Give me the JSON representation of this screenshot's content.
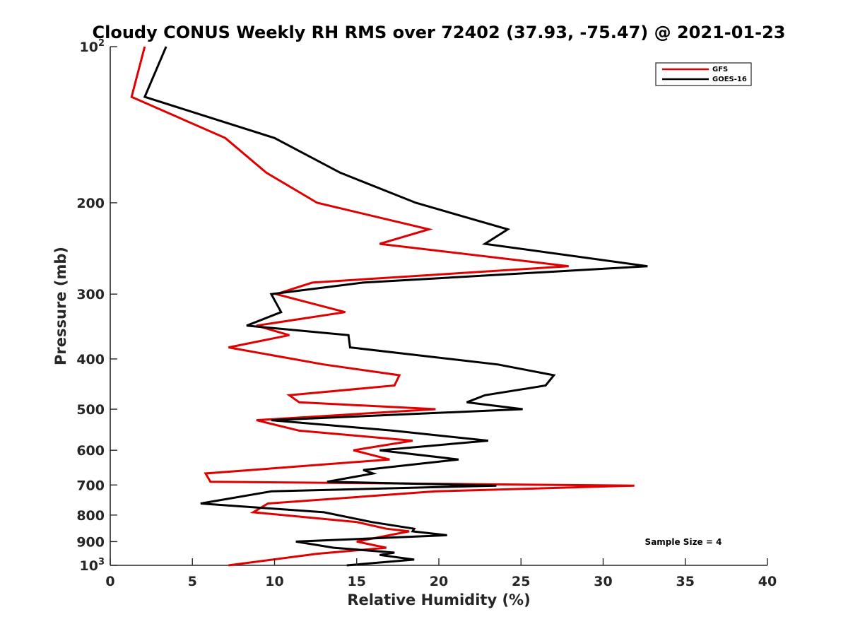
{
  "chart_data": {
    "type": "line",
    "title": "Cloudy CONUS Weekly RH RMS over 72402 (37.93, -75.47) @ 2021-01-23",
    "xlabel": "Relative Humidity (%)",
    "ylabel": "Pressure (mb)",
    "xlim": [
      0,
      40
    ],
    "ylim": [
      100,
      1000
    ],
    "y_scale": "log",
    "y_reversed": true,
    "x_ticks": [
      0,
      5,
      10,
      15,
      20,
      25,
      30,
      35,
      40
    ],
    "x_tick_labels": [
      "0",
      "5",
      "10",
      "15",
      "20",
      "25",
      "30",
      "35",
      "40"
    ],
    "y_ticks": [
      100,
      200,
      300,
      400,
      500,
      600,
      700,
      800,
      900,
      1000
    ],
    "y_tick_labels": [
      "10^2",
      "200",
      "300",
      "400",
      "500",
      "600",
      "700",
      "800",
      "900",
      "10^3"
    ],
    "grid": false,
    "legend_position": "top-right",
    "annotation": "Sample Size = 4",
    "series": [
      {
        "name": "GFS",
        "color": "#e00000",
        "points": [
          [
            2.1,
            100
          ],
          [
            1.3,
            125
          ],
          [
            7.0,
            150
          ],
          [
            9.5,
            175
          ],
          [
            12.6,
            200
          ],
          [
            19.4,
            225
          ],
          [
            16.4,
            240
          ],
          [
            27.9,
            265
          ],
          [
            12.3,
            285
          ],
          [
            10.1,
            300
          ],
          [
            14.3,
            325
          ],
          [
            8.9,
            345
          ],
          [
            10.9,
            360
          ],
          [
            7.2,
            380
          ],
          [
            13.0,
            410
          ],
          [
            17.6,
            430
          ],
          [
            17.3,
            450
          ],
          [
            10.9,
            470
          ],
          [
            11.5,
            485
          ],
          [
            19.8,
            500
          ],
          [
            8.9,
            525
          ],
          [
            11.5,
            550
          ],
          [
            18.4,
            575
          ],
          [
            14.8,
            600
          ],
          [
            17.0,
            625
          ],
          [
            5.8,
            665
          ],
          [
            6.1,
            690
          ],
          [
            31.9,
            702
          ],
          [
            19.8,
            720
          ],
          [
            9.6,
            760
          ],
          [
            8.7,
            790
          ],
          [
            15.0,
            825
          ],
          [
            16.8,
            850
          ],
          [
            18.2,
            860
          ],
          [
            15.0,
            900
          ],
          [
            16.8,
            925
          ],
          [
            12.6,
            950
          ],
          [
            7.2,
            1000
          ]
        ]
      },
      {
        "name": "GOES-16",
        "color": "#000000",
        "points": [
          [
            3.4,
            100
          ],
          [
            2.1,
            125
          ],
          [
            10.0,
            150
          ],
          [
            14.0,
            175
          ],
          [
            18.6,
            200
          ],
          [
            24.2,
            225
          ],
          [
            22.8,
            240
          ],
          [
            32.7,
            265
          ],
          [
            15.4,
            285
          ],
          [
            9.8,
            300
          ],
          [
            10.4,
            325
          ],
          [
            8.3,
            345
          ],
          [
            14.5,
            360
          ],
          [
            14.6,
            380
          ],
          [
            23.6,
            410
          ],
          [
            27.0,
            430
          ],
          [
            26.5,
            450
          ],
          [
            22.8,
            470
          ],
          [
            21.7,
            485
          ],
          [
            25.1,
            500
          ],
          [
            9.8,
            525
          ],
          [
            17.2,
            550
          ],
          [
            23.0,
            575
          ],
          [
            16.4,
            600
          ],
          [
            21.2,
            625
          ],
          [
            15.4,
            655
          ],
          [
            16.0,
            665
          ],
          [
            13.2,
            690
          ],
          [
            23.5,
            702
          ],
          [
            9.8,
            720
          ],
          [
            5.5,
            760
          ],
          [
            13.0,
            790
          ],
          [
            15.9,
            825
          ],
          [
            18.5,
            850
          ],
          [
            18.4,
            860
          ],
          [
            20.5,
            875
          ],
          [
            11.3,
            900
          ],
          [
            13.6,
            925
          ],
          [
            17.3,
            945
          ],
          [
            16.4,
            955
          ],
          [
            18.5,
            975
          ],
          [
            14.4,
            1000
          ]
        ]
      }
    ]
  }
}
